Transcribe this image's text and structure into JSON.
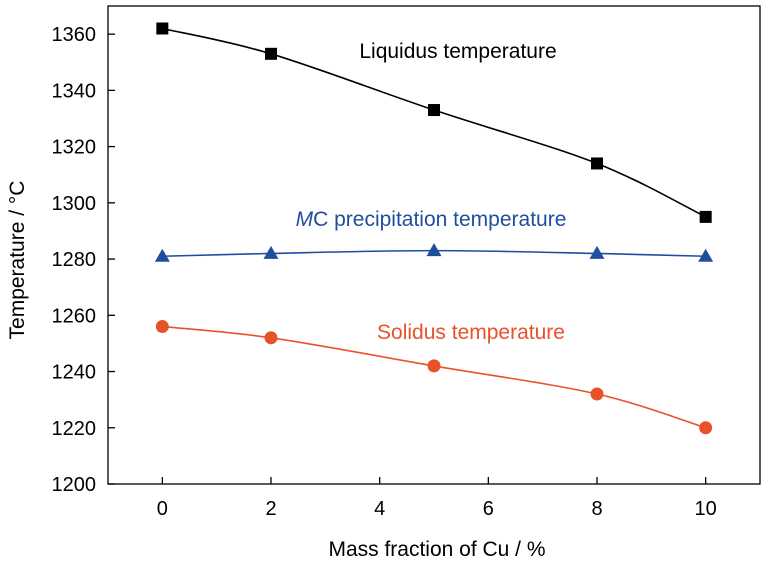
{
  "chart_data": {
    "type": "line",
    "title": "",
    "xlabel": "Mass fraction of Cu / %",
    "ylabel": "Temperature / °C",
    "xlim": [
      -1,
      11
    ],
    "ylim": [
      1200,
      1370
    ],
    "xticks": [
      0,
      2,
      4,
      6,
      8,
      10
    ],
    "yticks": [
      1200,
      1220,
      1240,
      1260,
      1280,
      1300,
      1320,
      1340,
      1360
    ],
    "grid": false,
    "legend": "none",
    "x": [
      0,
      2,
      5,
      8,
      10
    ],
    "series": [
      {
        "name": "Liquidus temperature",
        "label_parts": [
          {
            "text": "Liquidus temperature",
            "italic": false
          }
        ],
        "values": [
          1362,
          1353,
          1333,
          1314,
          1295
        ],
        "color": "#000000",
        "marker": "square"
      },
      {
        "name": "MC precipitation temperature",
        "label_parts": [
          {
            "text": "M",
            "italic": true
          },
          {
            "text": "C precipitation temperature",
            "italic": false
          }
        ],
        "values": [
          1281,
          1282,
          1283,
          1282,
          1281
        ],
        "color": "#1f4e9e",
        "marker": "triangle"
      },
      {
        "name": "Solidus temperature",
        "label_parts": [
          {
            "text": "Solidus temperature",
            "italic": false
          }
        ],
        "values": [
          1256,
          1252,
          1242,
          1232,
          1220
        ],
        "color": "#e8522a",
        "marker": "circle"
      }
    ]
  }
}
